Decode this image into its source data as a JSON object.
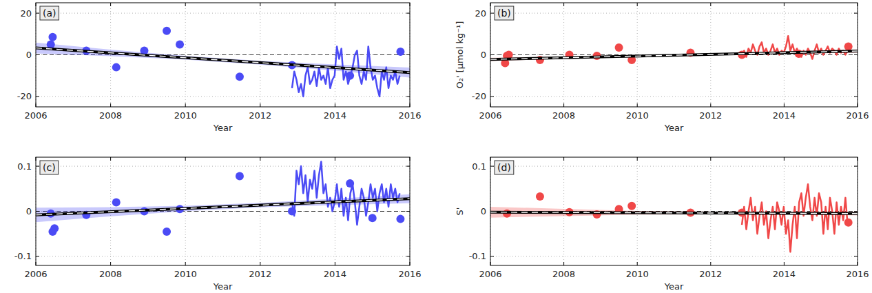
{
  "chart_data": [
    {
      "type": "scatter",
      "title": "(a)",
      "xlabel": "Year",
      "xlim": [
        2006,
        2016
      ],
      "xticks": [
        2006,
        2008,
        2010,
        2012,
        2014,
        2016
      ],
      "ylim": [
        -25,
        25
      ],
      "yticks": [
        -20,
        0,
        20
      ],
      "grid": true,
      "reference_line": 0,
      "series": [
        {
          "type": "band",
          "color": "#4b4bf5",
          "x": [
            2006,
            2008,
            2010,
            2012,
            2014,
            2016
          ],
          "lower": [
            0.7,
            -0.7,
            -2.3,
            -4.7,
            -7.6,
            -10.9
          ],
          "upper": [
            5.9,
            2.5,
            -0.5,
            -2.9,
            -4.6,
            -6.1
          ]
        },
        {
          "type": "line",
          "color": "#4b4bf5",
          "line_style": "solid",
          "x": [
            2012.85,
            2012.91,
            2012.97,
            2013.03,
            2013.09,
            2013.15,
            2013.21,
            2013.27,
            2013.33,
            2013.39,
            2013.45,
            2013.51,
            2013.57,
            2013.63,
            2013.69,
            2013.75,
            2013.81,
            2013.87,
            2013.93,
            2013.99,
            2014.05,
            2014.11,
            2014.17,
            2014.23,
            2014.29,
            2014.35,
            2014.41,
            2014.47,
            2014.53,
            2014.59,
            2014.65,
            2014.71,
            2014.77,
            2014.83,
            2014.89,
            2014.95,
            2015.01,
            2015.07,
            2015.13,
            2015.19,
            2015.25,
            2015.31,
            2015.37,
            2015.43,
            2015.49,
            2015.55,
            2015.61,
            2015.67,
            2015.73
          ],
          "values": [
            -16,
            -8,
            -12,
            -18,
            -14,
            -20,
            -10,
            -6,
            -14,
            -12,
            -8,
            -15,
            -6,
            -12,
            -10,
            -14,
            -6,
            -16,
            -12,
            -10,
            4,
            -2,
            3,
            -12,
            -8,
            -14,
            -10,
            -6,
            0,
            2,
            -10,
            -14,
            -8,
            -12,
            4,
            -6,
            -12,
            -10,
            -16,
            -20,
            -8,
            -12,
            -6,
            -16,
            -10,
            -12,
            -8,
            -14,
            -10
          ]
        },
        {
          "type": "scatter",
          "color": "#4b4bf5",
          "marker": "circle",
          "x": [
            2006.4,
            2006.45,
            2007.35,
            2008.15,
            2008.9,
            2009.5,
            2009.85,
            2011.45,
            2012.85,
            2014.4,
            2015.75
          ],
          "values": [
            5,
            8.5,
            2,
            -6,
            2,
            11.5,
            5,
            -10.5,
            -5,
            -10,
            1.5
          ]
        },
        {
          "type": "line",
          "color": "#000000",
          "line_style": "dashed",
          "x": [
            2006,
            2016
          ],
          "values": [
            3.3,
            -8.5
          ]
        }
      ]
    },
    {
      "type": "scatter",
      "title": "(b)",
      "xlabel": "Year",
      "ylabel": "O₂' [µmol kg⁻¹]",
      "xlim": [
        2006,
        2016
      ],
      "xticks": [
        2006,
        2008,
        2010,
        2012,
        2014,
        2016
      ],
      "ylim": [
        -25,
        25
      ],
      "yticks": [
        -20,
        0,
        20
      ],
      "grid": true,
      "reference_line": 0,
      "series": [
        {
          "type": "band",
          "color": "#f04848",
          "x": [
            2006,
            2008,
            2010,
            2012,
            2014,
            2016
          ],
          "lower": [
            -3.0,
            -1.9,
            -0.9,
            -0.1,
            0.5,
            1.0
          ],
          "upper": [
            -1.4,
            -0.9,
            -0.3,
            0.5,
            1.5,
            2.6
          ]
        },
        {
          "type": "line",
          "color": "#f04848",
          "line_style": "solid",
          "x": [
            2012.85,
            2012.91,
            2012.97,
            2013.03,
            2013.09,
            2013.15,
            2013.21,
            2013.27,
            2013.33,
            2013.39,
            2013.45,
            2013.51,
            2013.57,
            2013.63,
            2013.69,
            2013.75,
            2013.81,
            2013.87,
            2013.93,
            2013.99,
            2014.05,
            2014.11,
            2014.17,
            2014.23,
            2014.29,
            2014.35,
            2014.41,
            2014.47,
            2014.53,
            2014.59,
            2014.65,
            2014.71,
            2014.77,
            2014.83,
            2014.89,
            2014.95,
            2015.01,
            2015.07,
            2015.13,
            2015.19,
            2015.25,
            2015.31,
            2015.37,
            2015.43,
            2015.49,
            2015.55,
            2015.61,
            2015.67,
            2015.73
          ],
          "values": [
            0,
            2,
            -1,
            3,
            1,
            5,
            2,
            0,
            4,
            6,
            1,
            3,
            0,
            2,
            5,
            1,
            3,
            0,
            2,
            1,
            4,
            9,
            2,
            5,
            1,
            3,
            0,
            -1,
            2,
            0,
            3,
            1,
            -2,
            2,
            5,
            1,
            3,
            0,
            2,
            4,
            1,
            3,
            2,
            0,
            3,
            1,
            2,
            0,
            2
          ]
        },
        {
          "type": "scatter",
          "color": "#f04848",
          "marker": "circle",
          "x": [
            2006.4,
            2006.45,
            2006.5,
            2007.35,
            2008.15,
            2008.9,
            2009.5,
            2009.85,
            2011.45,
            2012.85,
            2014.4,
            2015.75
          ],
          "values": [
            -4,
            -0.5,
            0,
            -2.5,
            0,
            -0.5,
            3.5,
            -2.5,
            1,
            0,
            0.5,
            4
          ]
        },
        {
          "type": "line",
          "color": "#000000",
          "line_style": "dashed",
          "x": [
            2006,
            2016
          ],
          "values": [
            -2.2,
            1.8
          ]
        }
      ]
    },
    {
      "type": "scatter",
      "title": "(c)",
      "xlabel": "Year",
      "xlim": [
        2006,
        2016
      ],
      "xticks": [
        2006,
        2008,
        2010,
        2012,
        2014,
        2016
      ],
      "ylim": [
        -0.12,
        0.12
      ],
      "yticks": [
        -0.1,
        0,
        0.1
      ],
      "grid": true,
      "reference_line": 0,
      "series": [
        {
          "type": "band",
          "color": "#4b4bf5",
          "x": [
            2006,
            2008,
            2010,
            2012,
            2014,
            2016
          ],
          "lower": [
            -0.024,
            -0.011,
            0.0004,
            0.0086,
            0.0138,
            0.018
          ],
          "upper": [
            0.008,
            0.0092,
            0.0124,
            0.0186,
            0.0278,
            0.038
          ]
        },
        {
          "type": "line",
          "color": "#4b4bf5",
          "line_style": "solid",
          "x": [
            2012.85,
            2012.91,
            2012.97,
            2013.03,
            2013.09,
            2013.15,
            2013.21,
            2013.27,
            2013.33,
            2013.39,
            2013.45,
            2013.51,
            2013.57,
            2013.63,
            2013.69,
            2013.75,
            2013.81,
            2013.87,
            2013.93,
            2013.99,
            2014.05,
            2014.11,
            2014.17,
            2014.23,
            2014.29,
            2014.35,
            2014.41,
            2014.47,
            2014.53,
            2014.59,
            2014.65,
            2014.71,
            2014.77,
            2014.83,
            2014.89,
            2014.95,
            2015.01,
            2015.07,
            2015.13,
            2015.19,
            2015.25,
            2015.31,
            2015.37,
            2015.43,
            2015.49,
            2015.55,
            2015.61,
            2015.67,
            2015.73
          ],
          "values": [
            0.02,
            -0.01,
            0.09,
            0.06,
            0.1,
            0.04,
            0.08,
            0.02,
            0.07,
            0.05,
            0.09,
            0.03,
            0.08,
            0.11,
            0.04,
            0.06,
            0.01,
            0.03,
            0,
            0.02,
            0.06,
            0.01,
            0.05,
            -0.01,
            0.03,
            -0.02,
            0.04,
            0.06,
            0.02,
            -0.03,
            0.01,
            0.05,
            0.03,
            -0.01,
            0.02,
            0.06,
            0.03,
            0.05,
            0,
            0.04,
            0.06,
            0.02,
            0.05,
            0.01,
            0.06,
            0.03,
            0.05,
            0.02,
            0.04
          ]
        },
        {
          "type": "scatter",
          "color": "#4b4bf5",
          "marker": "circle",
          "x": [
            2006.4,
            2006.45,
            2006.5,
            2007.35,
            2008.15,
            2008.9,
            2009.5,
            2009.85,
            2011.45,
            2012.85,
            2014.4,
            2015.0,
            2015.75
          ],
          "values": [
            -0.005,
            -0.045,
            -0.038,
            -0.008,
            0.02,
            0,
            -0.045,
            0.005,
            0.078,
            0,
            0.062,
            -0.015,
            -0.017
          ]
        },
        {
          "type": "line",
          "color": "#000000",
          "line_style": "dashed",
          "x": [
            2006,
            2016
          ],
          "values": [
            -0.008,
            0.028
          ]
        }
      ]
    },
    {
      "type": "scatter",
      "title": "(d)",
      "xlabel": "Year",
      "ylabel": "S'",
      "xlim": [
        2006,
        2016
      ],
      "xticks": [
        2006,
        2008,
        2010,
        2012,
        2014,
        2016
      ],
      "ylim": [
        -0.12,
        0.12
      ],
      "yticks": [
        -0.1,
        0,
        0.1
      ],
      "grid": true,
      "reference_line": 0,
      "series": [
        {
          "type": "band",
          "color": "#f04848",
          "x": [
            2006,
            2008,
            2010,
            2012,
            2014,
            2016
          ],
          "lower": [
            -0.014,
            -0.0106,
            -0.0072,
            -0.0068,
            -0.0074,
            -0.009
          ],
          "upper": [
            0.01,
            0.0054,
            0.0008,
            -0.0008,
            -0.0014,
            -0.001
          ]
        },
        {
          "type": "line",
          "color": "#f04848",
          "line_style": "solid",
          "x": [
            2012.85,
            2012.91,
            2012.97,
            2013.03,
            2013.09,
            2013.15,
            2013.21,
            2013.27,
            2013.33,
            2013.39,
            2013.45,
            2013.51,
            2013.57,
            2013.63,
            2013.69,
            2013.75,
            2013.81,
            2013.87,
            2013.93,
            2013.99,
            2014.05,
            2014.11,
            2014.17,
            2014.23,
            2014.29,
            2014.35,
            2014.41,
            2014.47,
            2014.53,
            2014.59,
            2014.65,
            2014.71,
            2014.77,
            2014.83,
            2014.89,
            2014.95,
            2015.01,
            2015.07,
            2015.13,
            2015.19,
            2015.25,
            2015.31,
            2015.37,
            2015.43,
            2015.49,
            2015.55,
            2015.61,
            2015.67,
            2015.73
          ],
          "values": [
            -0.03,
            0.01,
            -0.04,
            0,
            0.03,
            -0.02,
            0.01,
            -0.05,
            -0.01,
            0.02,
            -0.03,
            0,
            -0.06,
            -0.02,
            0.01,
            -0.04,
            0.02,
            0,
            -0.03,
            0.01,
            -0.05,
            -0.02,
            -0.09,
            -0.03,
            0.01,
            -0.06,
            0.02,
            0.04,
            -0.01,
            0.03,
            0.06,
            0.01,
            -0.02,
            0.03,
            -0.01,
            0.04,
            0.02,
            -0.05,
            0.01,
            -0.04,
            0.03,
            0,
            -0.05,
            0.02,
            -0.03,
            0.01,
            -0.02,
            0.03,
            -0.03
          ]
        },
        {
          "type": "scatter",
          "color": "#f04848",
          "marker": "circle",
          "x": [
            2006.45,
            2007.35,
            2008.15,
            2008.9,
            2009.5,
            2009.85,
            2011.45,
            2012.85,
            2015.75
          ],
          "values": [
            -0.005,
            0.033,
            -0.002,
            -0.007,
            0.005,
            0.012,
            -0.003,
            -0.003,
            -0.025
          ]
        },
        {
          "type": "line",
          "color": "#000000",
          "line_style": "dashed",
          "x": [
            2006,
            2016
          ],
          "values": [
            -0.002,
            -0.005
          ]
        }
      ]
    }
  ]
}
